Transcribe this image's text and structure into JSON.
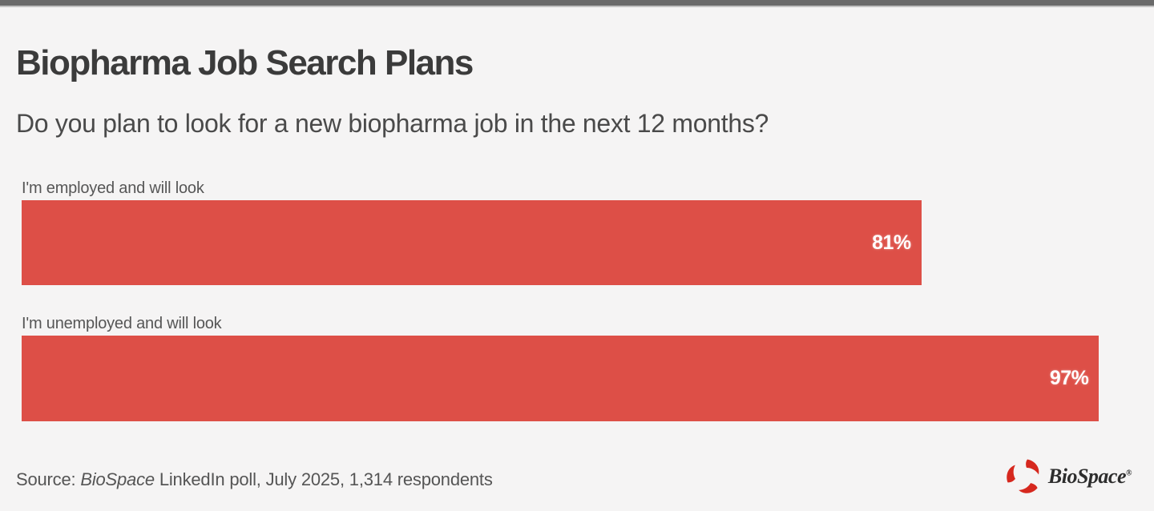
{
  "window": {
    "background": "#f5f4f4",
    "top_bar_color": "#6a6a6a"
  },
  "header": {
    "title": "Biopharma Job Search Plans",
    "subtitle": "Do you plan to look for a new biopharma job in the next 12 months?"
  },
  "chart_data": {
    "type": "bar",
    "orientation": "horizontal",
    "title": "Biopharma Job Search Plans",
    "subtitle": "Do you plan to look for a new biopharma job in the next 12 months?",
    "categories": [
      "I'm employed and will look",
      "I'm unemployed and will look"
    ],
    "values": [
      81,
      97
    ],
    "value_labels": [
      "81%",
      "97%"
    ],
    "xlim": [
      0,
      100
    ],
    "bar_color": "#dd4f47",
    "value_label_color": "#ffffff",
    "grid": false,
    "legend": false
  },
  "footer": {
    "source_prefix": "Source: ",
    "source_name": "BioSpace",
    "source_suffix": " LinkedIn poll, July 2025, 1,314 respondents",
    "logo_text": "BioSpace",
    "logo_reg_mark": "®",
    "logo_color": "#d6281e"
  }
}
